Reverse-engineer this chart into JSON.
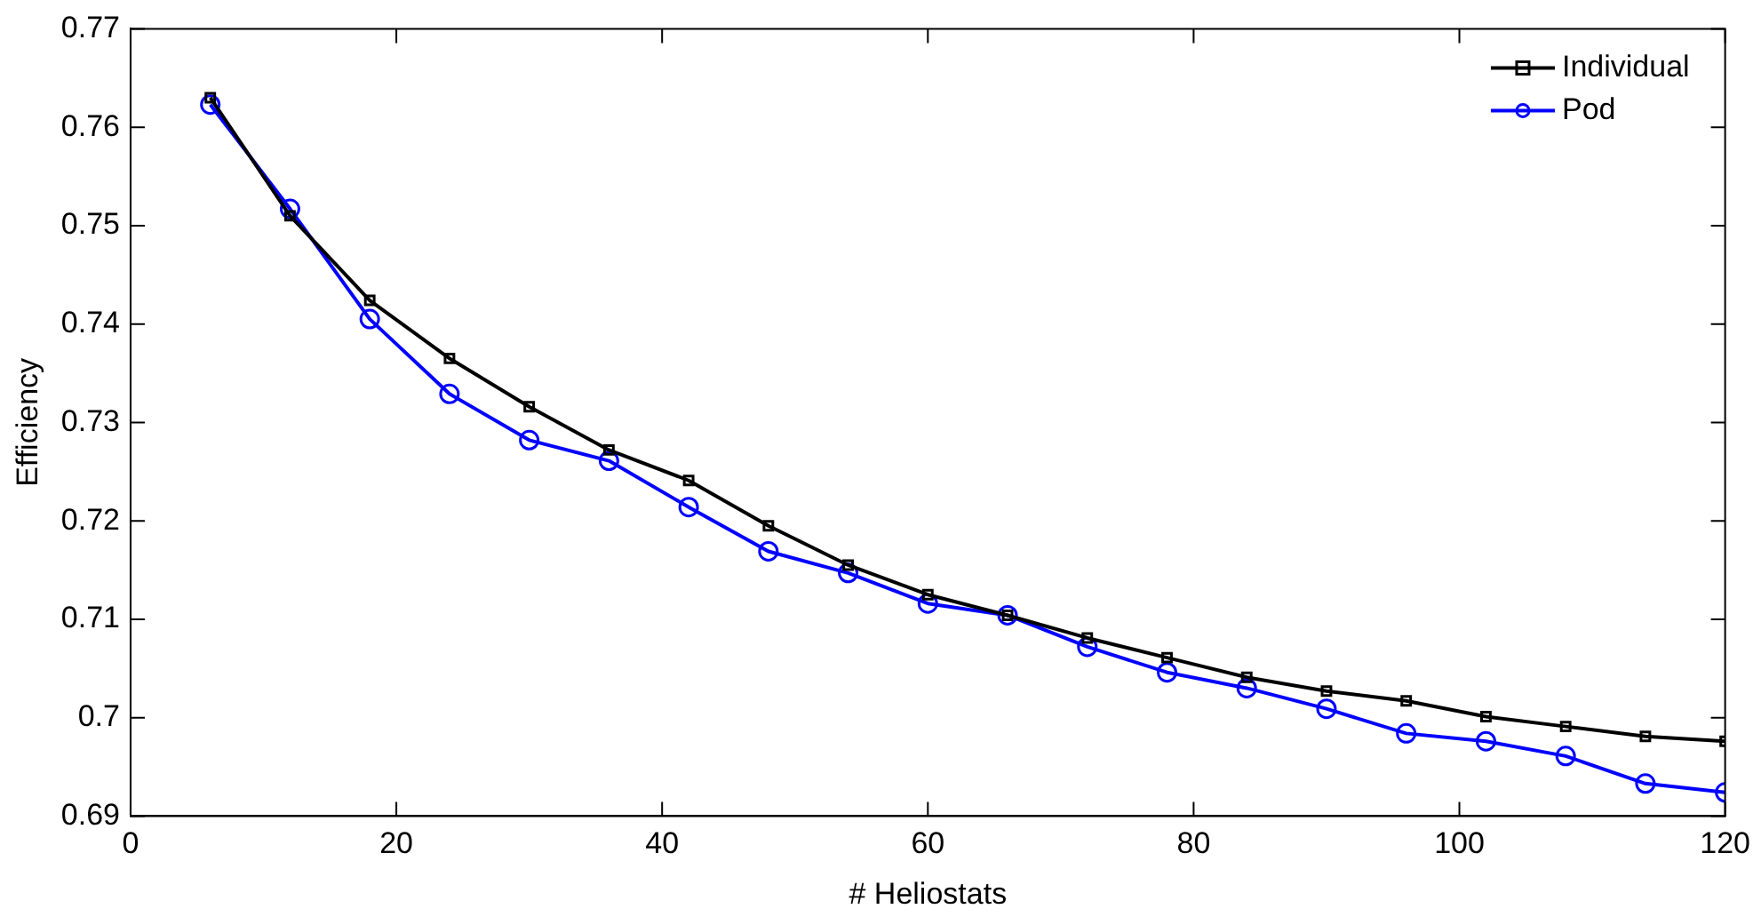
{
  "chart_data": {
    "type": "line",
    "xlabel": "# Heliostats",
    "ylabel": "Efficiency",
    "x": [
      6,
      12,
      18,
      24,
      30,
      36,
      42,
      48,
      54,
      60,
      66,
      72,
      78,
      84,
      90,
      96,
      102,
      108,
      114,
      120
    ],
    "series": [
      {
        "name": "Individual",
        "color": "#000000",
        "marker": "square",
        "values": [
          0.763,
          0.751,
          0.7424,
          0.7365,
          0.7316,
          0.7272,
          0.7241,
          0.7195,
          0.7155,
          0.7125,
          0.7104,
          0.7081,
          0.7061,
          0.7041,
          0.7027,
          0.7017,
          0.7001,
          0.6991,
          0.6981,
          0.6976
        ]
      },
      {
        "name": "Pod",
        "color": "#0000ff",
        "marker": "circle",
        "values": [
          0.7623,
          0.7517,
          0.7405,
          0.7329,
          0.7282,
          0.7261,
          0.7214,
          0.7169,
          0.7147,
          0.7116,
          0.7104,
          0.7072,
          0.7046,
          0.703,
          0.7009,
          0.6984,
          0.6976,
          0.6961,
          0.6933,
          0.6924
        ]
      }
    ],
    "xlim": [
      0,
      120
    ],
    "xticks": [
      0,
      20,
      40,
      60,
      80,
      100,
      120
    ],
    "ylim": [
      0.69,
      0.77
    ],
    "yticks": [
      0.69,
      0.7,
      0.71,
      0.72,
      0.73,
      0.74,
      0.75,
      0.76,
      0.77
    ],
    "grid": false,
    "legend": "top right",
    "line_style": "solid"
  }
}
